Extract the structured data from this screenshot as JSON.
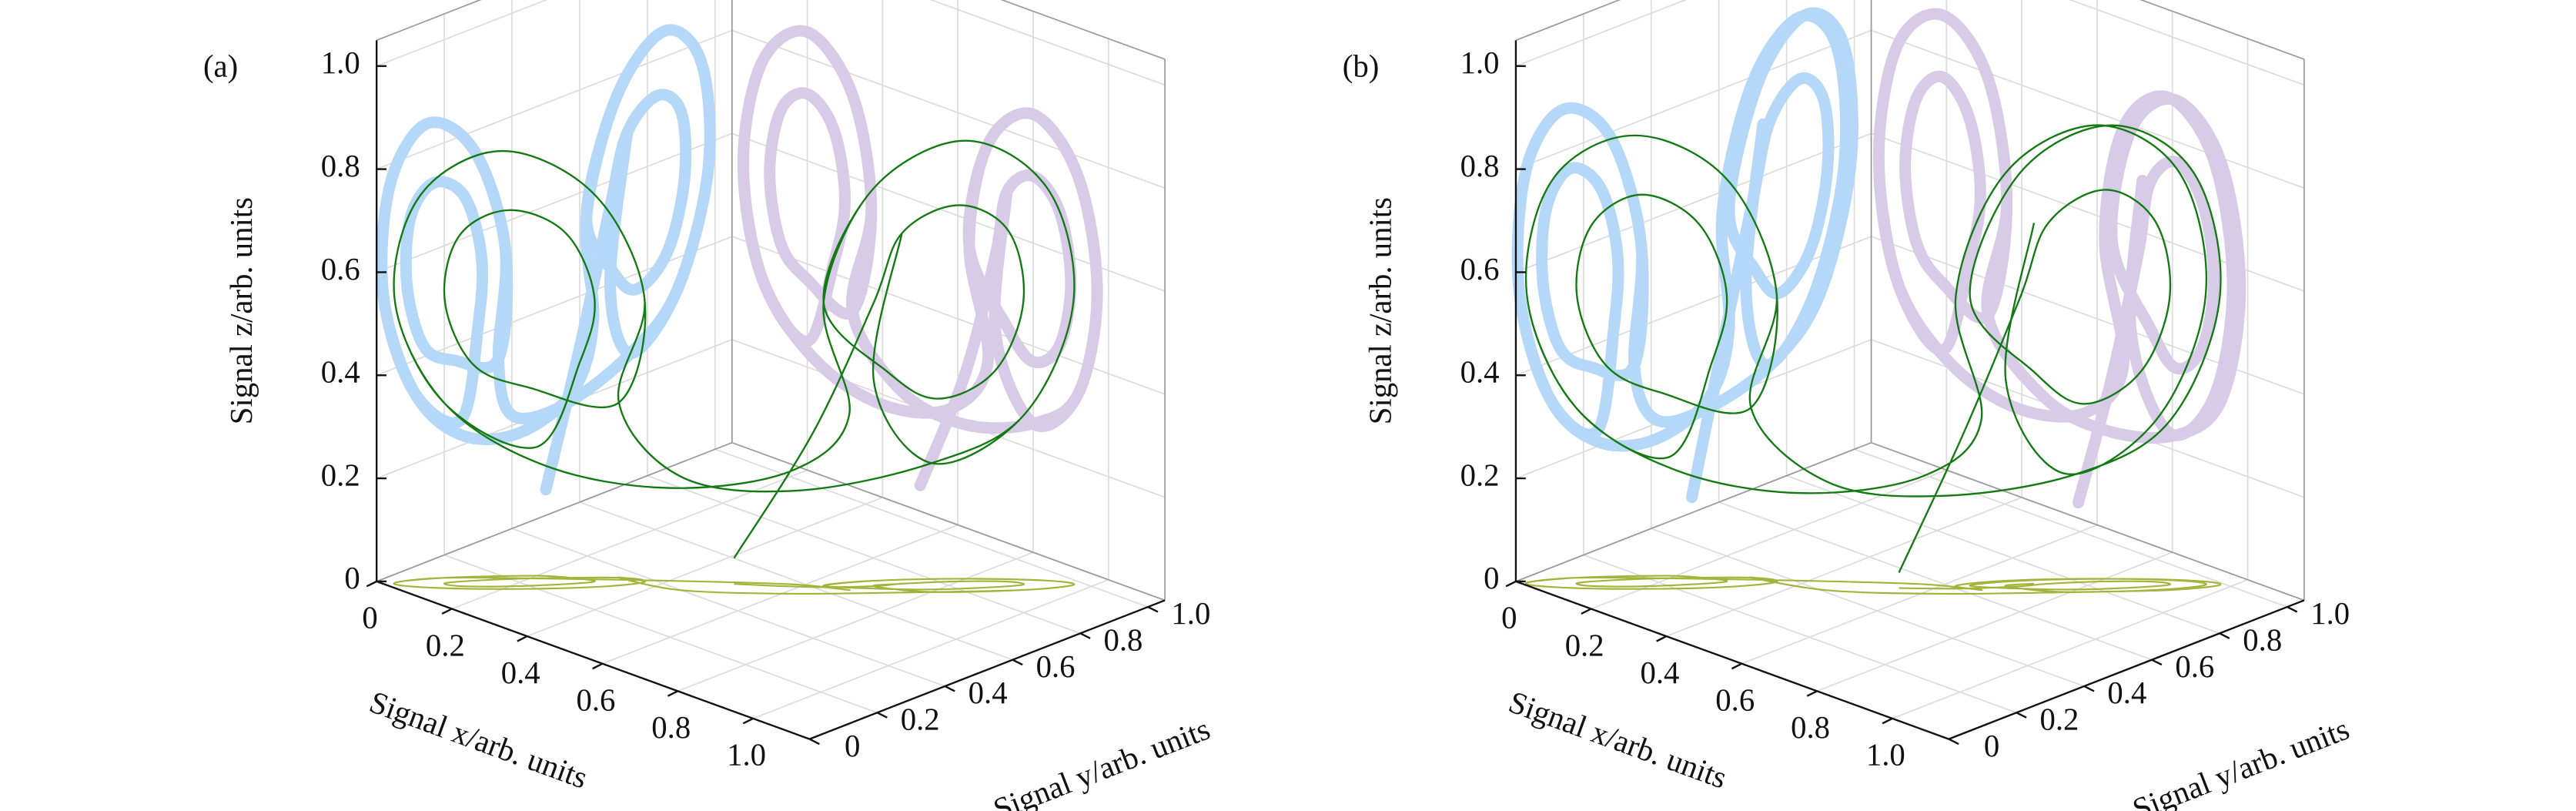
{
  "chart_data": [
    {
      "type": "line3d",
      "label": "(a)",
      "x_label": "Signal x/arb. units",
      "y_label": "Signal y/arb. units",
      "z_label": "Signal z/arb. units",
      "xlim": [
        0,
        1.15
      ],
      "ylim": [
        0,
        1.05
      ],
      "zlim": [
        0,
        1.05
      ],
      "xticks": [
        0,
        0.2,
        0.4,
        0.6,
        0.8,
        {
          "value": 1,
          "label": "1.0"
        }
      ],
      "yticks": [
        0,
        0.2,
        0.4,
        0.6,
        0.8,
        {
          "value": 1,
          "label": "1.0"
        }
      ],
      "zticks": [
        0,
        0.2,
        0.4,
        0.6,
        0.8,
        {
          "value": 1,
          "label": "1.0"
        }
      ],
      "grid": true,
      "projection_colors": {
        "yz": "#b5d8f8",
        "xz": "#d8cbe8",
        "xy": "#a3b43a"
      },
      "series": [
        {
          "color": "#137a13",
          "x": [
            0.5,
            0.62,
            0.7,
            0.73,
            0.8,
            0.87,
            0.9,
            0.87,
            0.8,
            0.73,
            0.63,
            0.68,
            0.8,
            0.92,
            0.97,
            0.92,
            0.8,
            0.62,
            0.45,
            0.32,
            0.37,
            0.32,
            0.2,
            0.08,
            0.03,
            0.08,
            0.2,
            0.27,
            0.3,
            0.27,
            0.2,
            0.13,
            0.1,
            0.13,
            0.2,
            0.32,
            0.37,
            0.32,
            0.2,
            0.08,
            0.03,
            0.08,
            0.22,
            0.4,
            0.58,
            0.68,
            0.63,
            0.68,
            0.8,
            0.92,
            0.97,
            0.92,
            0.8,
            0.7,
            0.73
          ],
          "y": [
            0.5,
            0.6,
            0.69,
            0.74,
            0.83,
            0.9,
            0.91,
            0.86,
            0.77,
            0.7,
            0.62,
            0.71,
            0.85,
            0.96,
            0.98,
            0.89,
            0.75,
            0.55,
            0.4,
            0.36,
            0.38,
            0.29,
            0.15,
            0.04,
            0.02,
            0.11,
            0.25,
            0.3,
            0.31,
            0.26,
            0.17,
            0.1,
            0.09,
            0.14,
            0.23,
            0.36,
            0.38,
            0.29,
            0.15,
            0.04,
            0.02,
            0.11,
            0.25,
            0.42,
            0.58,
            0.64,
            0.62,
            0.71,
            0.85,
            0.96,
            0.98,
            0.89,
            0.75,
            0.69,
            0.74
          ],
          "z": [
            0.05,
            0.3,
            0.55,
            0.68,
            0.73,
            0.68,
            0.55,
            0.42,
            0.37,
            0.42,
            0.55,
            0.76,
            0.85,
            0.76,
            0.55,
            0.34,
            0.25,
            0.2,
            0.22,
            0.34,
            0.55,
            0.76,
            0.85,
            0.76,
            0.55,
            0.34,
            0.25,
            0.42,
            0.55,
            0.68,
            0.73,
            0.68,
            0.55,
            0.42,
            0.37,
            0.34,
            0.55,
            0.76,
            0.85,
            0.76,
            0.55,
            0.34,
            0.22,
            0.18,
            0.22,
            0.34,
            0.55,
            0.76,
            0.85,
            0.76,
            0.55,
            0.34,
            0.25,
            0.4,
            0.68
          ]
        }
      ]
    },
    {
      "type": "line3d",
      "label": "(b)",
      "x_label": "Signal x/arb. units",
      "y_label": "Signal y/arb. units",
      "z_label": "Signal z/arb. units",
      "xlim": [
        0,
        1.15
      ],
      "ylim": [
        0,
        1.05
      ],
      "zlim": [
        0,
        1.05
      ],
      "xticks": [
        0,
        0.2,
        0.4,
        0.6,
        0.8,
        {
          "value": 1,
          "label": "1.0"
        }
      ],
      "yticks": [
        0,
        0.2,
        0.4,
        0.6,
        0.8,
        {
          "value": 1,
          "label": "1.0"
        }
      ],
      "zticks": [
        0,
        0.2,
        0.4,
        0.6,
        0.8,
        {
          "value": 1,
          "label": "1.0"
        }
      ],
      "grid": true,
      "projection_colors": {
        "yz": "#b5d8f8",
        "xz": "#d8cbe8",
        "xy": "#a3b43a"
      },
      "series": [
        {
          "color": "#137a13",
          "x": [
            0.55,
            0.64,
            0.71,
            0.74,
            0.81,
            0.88,
            0.91,
            0.88,
            0.81,
            0.74,
            0.64,
            0.69,
            0.81,
            0.93,
            0.98,
            0.93,
            0.81,
            0.63,
            0.46,
            0.31,
            0.36,
            0.31,
            0.19,
            0.07,
            0.02,
            0.07,
            0.19,
            0.26,
            0.29,
            0.26,
            0.19,
            0.12,
            0.09,
            0.12,
            0.19,
            0.31,
            0.36,
            0.31,
            0.19,
            0.07,
            0.02,
            0.07,
            0.21,
            0.39,
            0.57,
            0.67,
            0.62,
            0.67,
            0.79,
            0.91,
            0.96,
            0.91,
            0.79,
            0.69,
            0.72
          ],
          "y": [
            0.52,
            0.61,
            0.7,
            0.75,
            0.84,
            0.91,
            0.92,
            0.87,
            0.78,
            0.71,
            0.63,
            0.72,
            0.86,
            0.97,
            0.99,
            0.9,
            0.76,
            0.56,
            0.41,
            0.35,
            0.37,
            0.28,
            0.14,
            0.03,
            0.01,
            0.1,
            0.24,
            0.29,
            0.3,
            0.25,
            0.16,
            0.09,
            0.08,
            0.13,
            0.22,
            0.35,
            0.37,
            0.28,
            0.14,
            0.03,
            0.01,
            0.1,
            0.24,
            0.41,
            0.57,
            0.63,
            0.61,
            0.7,
            0.84,
            0.95,
            0.97,
            0.88,
            0.74,
            0.68,
            0.73
          ],
          "z": [
            0.03,
            0.3,
            0.56,
            0.7,
            0.76,
            0.7,
            0.56,
            0.42,
            0.36,
            0.42,
            0.56,
            0.79,
            0.88,
            0.79,
            0.56,
            0.33,
            0.23,
            0.19,
            0.21,
            0.33,
            0.56,
            0.79,
            0.88,
            0.79,
            0.56,
            0.33,
            0.23,
            0.42,
            0.56,
            0.7,
            0.76,
            0.7,
            0.56,
            0.42,
            0.36,
            0.33,
            0.56,
            0.79,
            0.88,
            0.79,
            0.56,
            0.33,
            0.21,
            0.17,
            0.21,
            0.33,
            0.56,
            0.79,
            0.88,
            0.79,
            0.56,
            0.33,
            0.23,
            0.4,
            0.7
          ]
        }
      ]
    }
  ]
}
